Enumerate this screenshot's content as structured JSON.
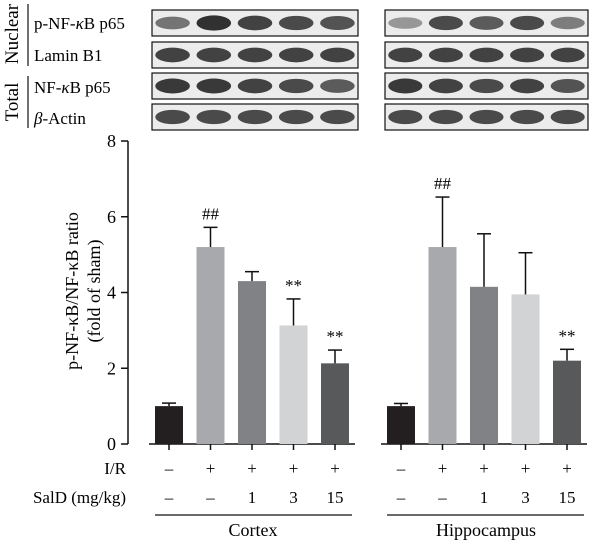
{
  "blots": {
    "section_labels": [
      "Nuclear",
      "Total"
    ],
    "rows": [
      {
        "label": "p-NF-κB p65",
        "label_parts": [
          "p-NF-",
          "κ",
          "B p65"
        ],
        "italic_part": "κ",
        "intensity": {
          "cortex": [
            0.55,
            0.95,
            0.85,
            0.8,
            0.75
          ],
          "hippocampus": [
            0.35,
            0.8,
            0.7,
            0.8,
            0.5
          ]
        }
      },
      {
        "label": "Lamin B1",
        "label_parts": [
          "Lamin B1"
        ],
        "italic_part": "",
        "intensity": {
          "cortex": [
            0.85,
            0.85,
            0.85,
            0.85,
            0.85
          ],
          "hippocampus": [
            0.85,
            0.85,
            0.85,
            0.85,
            0.85
          ]
        }
      },
      {
        "label": "NF-κB p65",
        "label_parts": [
          "NF-",
          "κ",
          "B p65"
        ],
        "italic_part": "κ",
        "intensity": {
          "cortex": [
            0.9,
            0.9,
            0.85,
            0.8,
            0.7
          ],
          "hippocampus": [
            0.9,
            0.85,
            0.8,
            0.85,
            0.75
          ]
        }
      },
      {
        "label": "β-Actin",
        "label_parts": [
          "β",
          "-Actin"
        ],
        "italic_part": "β",
        "intensity": {
          "cortex": [
            0.8,
            0.8,
            0.8,
            0.8,
            0.8
          ],
          "hippocampus": [
            0.8,
            0.8,
            0.8,
            0.8,
            0.8
          ]
        }
      }
    ]
  },
  "chart_data": {
    "type": "bar",
    "ylabel_line1": "p-NF-κB/NF-κB ratio",
    "ylabel_line2": "(fold of sham)",
    "ylim": [
      0,
      8
    ],
    "yticks": [
      0,
      2,
      4,
      6,
      8
    ],
    "grid": false,
    "groups": [
      {
        "name": "Cortex",
        "bars": [
          {
            "value": 1.0,
            "error": 0.08,
            "color": "#231f20",
            "annotation": ""
          },
          {
            "value": 5.2,
            "error": 0.52,
            "color": "#a7a9ac",
            "annotation": "##"
          },
          {
            "value": 4.3,
            "error": 0.25,
            "color": "#808285",
            "annotation": ""
          },
          {
            "value": 3.13,
            "error": 0.7,
            "color": "#d1d3d4",
            "annotation": "**"
          },
          {
            "value": 2.13,
            "error": 0.35,
            "color": "#58595b",
            "annotation": "**"
          }
        ]
      },
      {
        "name": "Hippocampus",
        "bars": [
          {
            "value": 1.0,
            "error": 0.07,
            "color": "#231f20",
            "annotation": ""
          },
          {
            "value": 5.2,
            "error": 1.32,
            "color": "#a7a9ac",
            "annotation": "##"
          },
          {
            "value": 4.15,
            "error": 1.4,
            "color": "#808285",
            "annotation": ""
          },
          {
            "value": 3.95,
            "error": 1.1,
            "color": "#d1d3d4",
            "annotation": ""
          },
          {
            "value": 2.2,
            "error": 0.3,
            "color": "#58595b",
            "annotation": "**"
          }
        ]
      }
    ],
    "conditions": [
      {
        "label": "I/R",
        "values": [
          "–",
          "+",
          "+",
          "+",
          "+"
        ]
      },
      {
        "label": "SalD (mg/kg)",
        "values": [
          "–",
          "–",
          "1",
          "3",
          "15"
        ]
      }
    ]
  }
}
